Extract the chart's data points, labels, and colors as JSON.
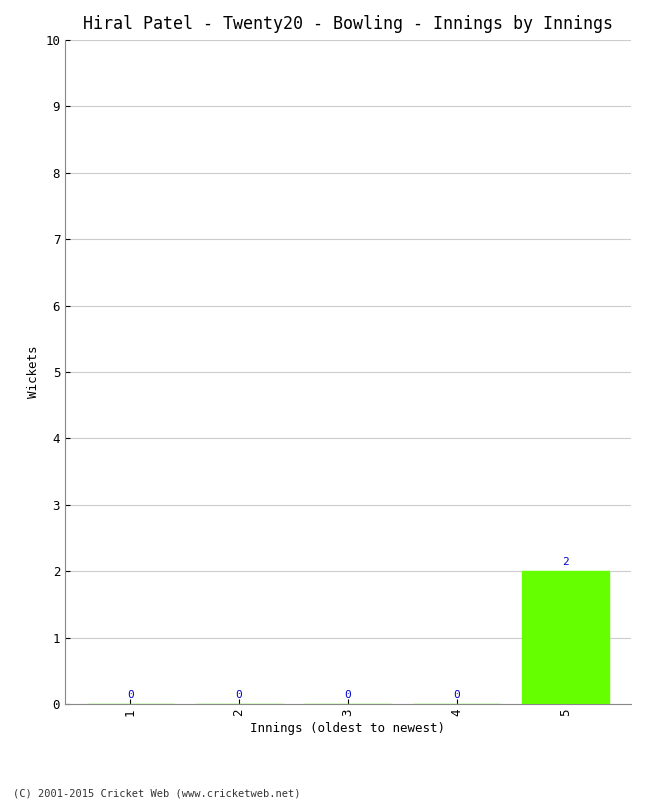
{
  "title": "Hiral Patel - Twenty20 - Bowling - Innings by Innings",
  "xlabel": "Innings (oldest to newest)",
  "ylabel": "Wickets",
  "categories": [
    "1",
    "2",
    "3",
    "4",
    "5"
  ],
  "values": [
    0,
    0,
    0,
    0,
    2
  ],
  "bar_color": "#66ff00",
  "bar_edge_color": "#66ff00",
  "ylim": [
    0,
    10
  ],
  "yticks": [
    0,
    1,
    2,
    3,
    4,
    5,
    6,
    7,
    8,
    9,
    10
  ],
  "value_labels": [
    "0",
    "0",
    "0",
    "0",
    "2"
  ],
  "background_color": "#ffffff",
  "grid_color": "#cccccc",
  "title_fontsize": 12,
  "axis_label_fontsize": 9,
  "tick_fontsize": 9,
  "annotation_fontsize": 8,
  "copyright": "(C) 2001-2015 Cricket Web (www.cricketweb.net)",
  "font_family": "monospace",
  "annotation_color": "#0000cc"
}
